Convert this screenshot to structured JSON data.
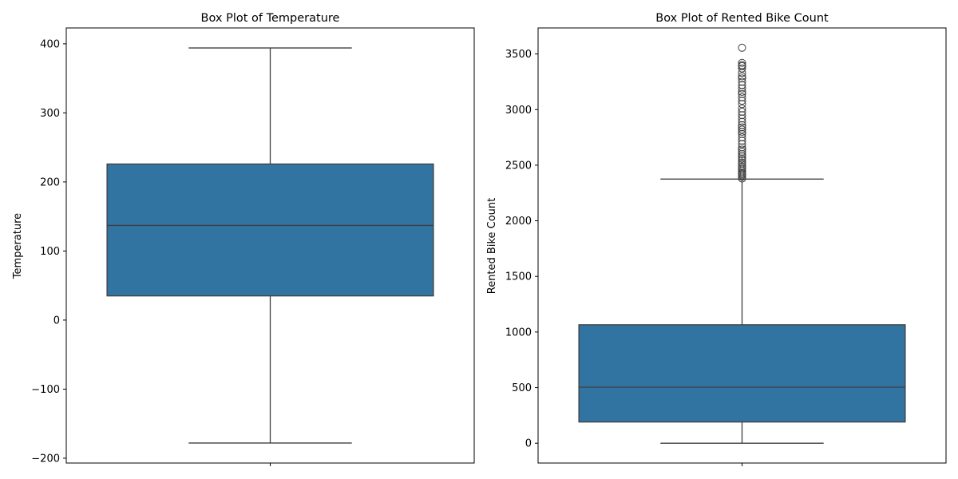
{
  "chart_data": [
    {
      "type": "box",
      "title": "Box Plot of Temperature",
      "xlabel": "",
      "ylabel": "Temperature",
      "ylim": [
        -207,
        423
      ],
      "yticks": [
        -200,
        -100,
        0,
        100,
        200,
        300,
        400
      ],
      "ytick_labels": [
        "−200",
        "−100",
        "0",
        "100",
        "200",
        "300",
        "400"
      ],
      "grid": false,
      "color": "#3274a1",
      "box": {
        "whisker_low": -178,
        "q1": 35,
        "median": 137,
        "q3": 226,
        "whisker_high": 394,
        "outliers": []
      }
    },
    {
      "type": "box",
      "title": "Box Plot of Rented Bike Count",
      "xlabel": "",
      "ylabel": "Rented Bike Count",
      "ylim": [
        -178,
        3734
      ],
      "yticks": [
        0,
        500,
        1000,
        1500,
        2000,
        2500,
        3000,
        3500
      ],
      "ytick_labels": [
        "0",
        "500",
        "1000",
        "1500",
        "2000",
        "2500",
        "3000",
        "3500"
      ],
      "grid": false,
      "color": "#3274a1",
      "box": {
        "whisker_low": 0,
        "q1": 191,
        "median": 504,
        "q3": 1065,
        "whisker_high": 2375,
        "outliers": [
          2380,
          2395,
          2410,
          2420,
          2430,
          2445,
          2460,
          2475,
          2490,
          2510,
          2525,
          2545,
          2560,
          2580,
          2600,
          2620,
          2640,
          2660,
          2690,
          2720,
          2750,
          2780,
          2800,
          2820,
          2840,
          2860,
          2890,
          2920,
          2950,
          2980,
          3010,
          3050,
          3080,
          3110,
          3140,
          3160,
          3190,
          3220,
          3250,
          3280,
          3300,
          3330,
          3370,
          3390,
          3400,
          3420,
          3556
        ]
      }
    }
  ]
}
